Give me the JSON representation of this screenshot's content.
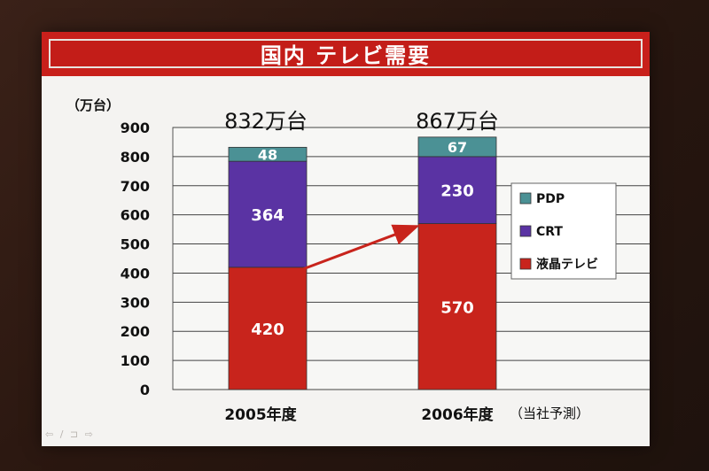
{
  "slide": {
    "title": "国内 テレビ需要",
    "nav": "⇦ / ⊐ ⇨"
  },
  "chart_data": {
    "type": "bar",
    "stacked": true,
    "title": "",
    "ylabel": "（万台）",
    "ylim": [
      0,
      900
    ],
    "yticks": [
      0,
      100,
      200,
      300,
      400,
      500,
      600,
      700,
      800,
      900
    ],
    "grid": true,
    "categories": [
      "2005年度",
      "2006年度"
    ],
    "category_note": "（当社予測）",
    "totals": [
      "832万台",
      "867万台"
    ],
    "series": [
      {
        "name": "液晶テレビ",
        "values": [
          420,
          570
        ],
        "color": "#c8241c"
      },
      {
        "name": "CRT",
        "values": [
          364,
          230
        ],
        "color": "#5a33a3"
      },
      {
        "name": "PDP",
        "values": [
          48,
          67
        ],
        "color": "#4b9195"
      }
    ],
    "legend_position": "right",
    "legend_order": [
      "PDP",
      "CRT",
      "液晶テレビ"
    ],
    "annotation": "arrow from 2005年度 液晶テレビ top to 2006年度 液晶テレビ top"
  }
}
